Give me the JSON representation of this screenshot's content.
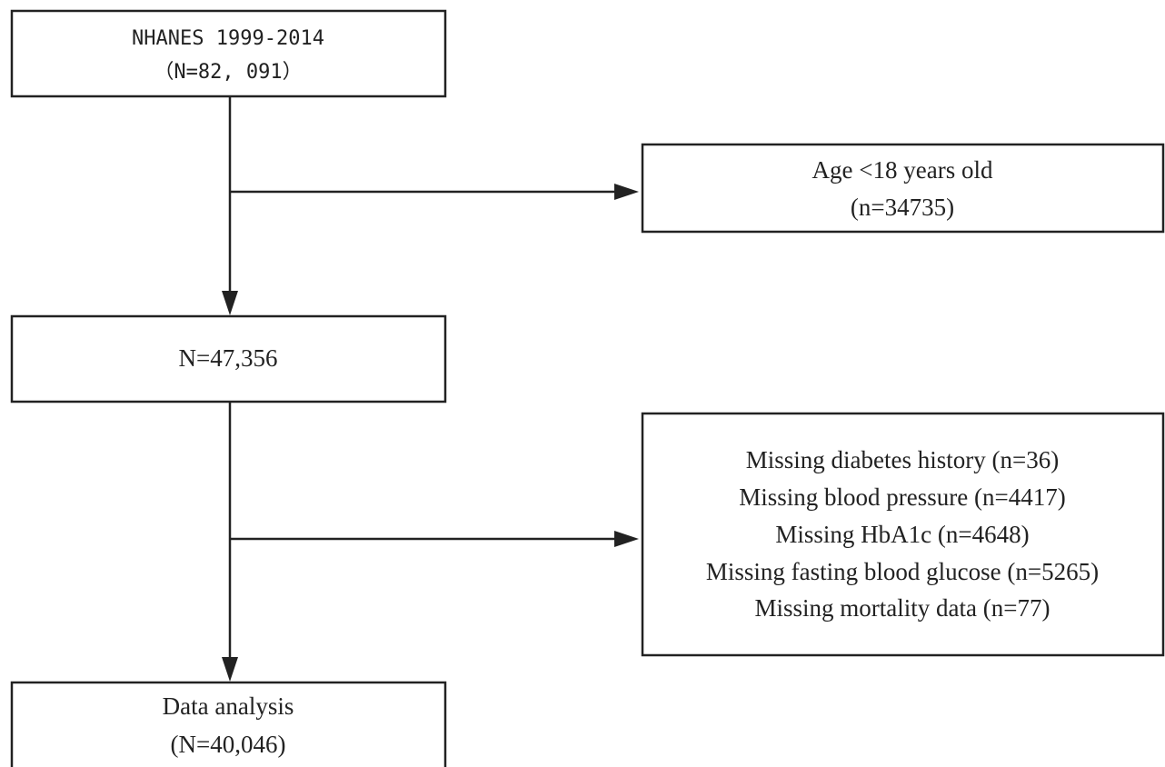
{
  "nodes": [
    {
      "lines": [
        "NHANES 1999-2014",
        "（N=82, 091）"
      ]
    },
    {
      "lines": [
        "Age <18 years old",
        "(n=34735)"
      ]
    },
    {
      "lines": [
        "N=47,356"
      ]
    },
    {
      "lines": [
        "Missing diabetes history (n=36)",
        "Missing blood pressure (n=4417)",
        "Missing HbA1c (n=4648)",
        "Missing fasting blood glucose (n=5265)",
        "Missing mortality data (n=77)"
      ]
    },
    {
      "lines": [
        "Data analysis",
        "(N=40,046)"
      ]
    }
  ]
}
